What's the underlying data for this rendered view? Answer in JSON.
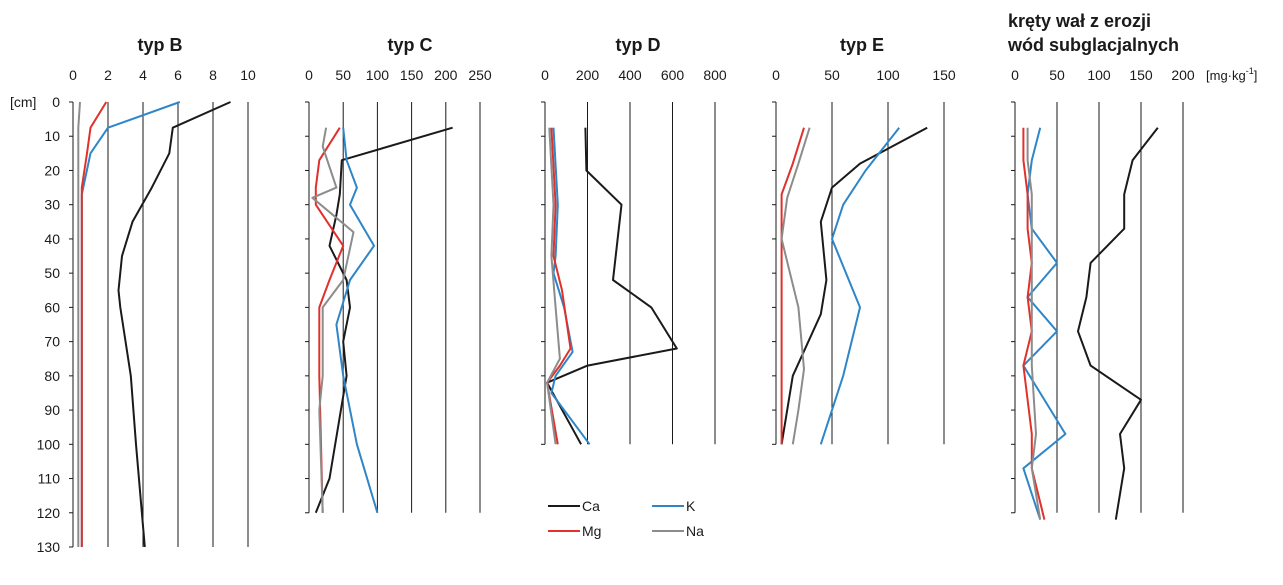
{
  "chart_data": {
    "type": "line",
    "y_unit_label": "[cm]",
    "x_unit_label": "[mg·kg",
    "x_unit_exponent": "-1",
    "x_unit_close": "]",
    "y_ticks": [
      "0",
      "10",
      "20",
      "30",
      "40",
      "50",
      "60",
      "70",
      "80",
      "90",
      "100",
      "110",
      "120",
      "130"
    ],
    "ylim": [
      0,
      130
    ],
    "colors": {
      "Ca": "#1a1a1a",
      "K": "#2e86c8",
      "Mg": "#e0312b",
      "Na": "#8c8c8c"
    },
    "legend": [
      {
        "key": "Ca",
        "label": "Ca"
      },
      {
        "key": "K",
        "label": "K"
      },
      {
        "key": "Mg",
        "label": "Mg"
      },
      {
        "key": "Na",
        "label": "Na"
      }
    ],
    "panels": [
      {
        "title": [
          "typ B"
        ],
        "xlim": [
          0,
          10
        ],
        "x_ticks": [
          "0",
          "2",
          "4",
          "6",
          "8",
          "10"
        ],
        "series": [
          {
            "name": "Ca",
            "points": [
              [
                9,
                0
              ],
              [
                5.7,
                7.5
              ],
              [
                5.5,
                15
              ],
              [
                4.5,
                25
              ],
              [
                3.4,
                35
              ],
              [
                2.8,
                45
              ],
              [
                2.6,
                55
              ],
              [
                2.7,
                60
              ],
              [
                3.3,
                80
              ],
              [
                3.6,
                100
              ],
              [
                4.1,
                130
              ]
            ]
          },
          {
            "name": "K",
            "points": [
              [
                6.1,
                0
              ],
              [
                2,
                7.5
              ],
              [
                1,
                15
              ],
              [
                0.5,
                27
              ],
              [
                0.5,
                40
              ],
              [
                0.5,
                130
              ]
            ]
          },
          {
            "name": "Mg",
            "points": [
              [
                1.9,
                0
              ],
              [
                1,
                7.5
              ],
              [
                0.8,
                15
              ],
              [
                0.5,
                25
              ],
              [
                0.5,
                130
              ]
            ]
          },
          {
            "name": "Na",
            "points": [
              [
                0.4,
                0
              ],
              [
                0.3,
                7.5
              ],
              [
                0.3,
                130
              ]
            ]
          }
        ]
      },
      {
        "title": [
          "typ C"
        ],
        "xlim": [
          0,
          250
        ],
        "x_ticks": [
          "0",
          "50",
          "100",
          "150",
          "200",
          "250"
        ],
        "series": [
          {
            "name": "Ca",
            "points": [
              [
                210,
                7.5
              ],
              [
                48,
                17
              ],
              [
                45,
                27
              ],
              [
                40,
                33
              ],
              [
                30,
                42
              ],
              [
                55,
                52
              ],
              [
                60,
                60
              ],
              [
                50,
                70
              ],
              [
                55,
                80
              ],
              [
                30,
                110
              ],
              [
                10,
                120
              ]
            ]
          },
          {
            "name": "K",
            "points": [
              [
                50,
                7.5
              ],
              [
                55,
                17
              ],
              [
                70,
                25
              ],
              [
                60,
                30
              ],
              [
                95,
                42
              ],
              [
                60,
                52
              ],
              [
                40,
                65
              ],
              [
                50,
                80
              ],
              [
                70,
                100
              ],
              [
                100,
                120
              ]
            ]
          },
          {
            "name": "Mg",
            "points": [
              [
                45,
                7.5
              ],
              [
                15,
                17
              ],
              [
                10,
                25
              ],
              [
                10,
                30
              ],
              [
                50,
                42
              ],
              [
                30,
                52
              ],
              [
                15,
                60
              ],
              [
                15,
                80
              ],
              [
                20,
                120
              ]
            ]
          },
          {
            "name": "Na",
            "points": [
              [
                25,
                7.5
              ],
              [
                20,
                13
              ],
              [
                40,
                25
              ],
              [
                5,
                28
              ],
              [
                65,
                38
              ],
              [
                50,
                52
              ],
              [
                20,
                60
              ],
              [
                20,
                80
              ],
              [
                15,
                90
              ],
              [
                20,
                120
              ]
            ]
          }
        ]
      },
      {
        "title": [
          "typ D"
        ],
        "xlim": [
          0,
          800
        ],
        "x_ticks": [
          "0",
          "200",
          "400",
          "600",
          "800"
        ],
        "series": [
          {
            "name": "Ca",
            "points": [
              [
                190,
                7.5
              ],
              [
                195,
                20
              ],
              [
                360,
                30
              ],
              [
                320,
                52
              ],
              [
                500,
                60
              ],
              [
                620,
                72
              ],
              [
                200,
                77
              ],
              [
                10,
                82
              ],
              [
                170,
                100
              ]
            ]
          },
          {
            "name": "K",
            "points": [
              [
                40,
                7.5
              ],
              [
                60,
                30
              ],
              [
                50,
                45
              ],
              [
                40,
                50
              ],
              [
                90,
                60
              ],
              [
                130,
                73
              ],
              [
                50,
                80
              ],
              [
                30,
                85
              ],
              [
                210,
                100
              ]
            ]
          },
          {
            "name": "Mg",
            "points": [
              [
                30,
                7.5
              ],
              [
                50,
                30
              ],
              [
                40,
                45
              ],
              [
                80,
                55
              ],
              [
                120,
                72
              ],
              [
                70,
                77
              ],
              [
                10,
                82
              ],
              [
                60,
                100
              ]
            ]
          },
          {
            "name": "Na",
            "points": [
              [
                20,
                7.5
              ],
              [
                40,
                30
              ],
              [
                30,
                45
              ],
              [
                50,
                60
              ],
              [
                70,
                75
              ],
              [
                10,
                82
              ],
              [
                50,
                100
              ]
            ]
          }
        ]
      },
      {
        "title": [
          "typ E"
        ],
        "xlim": [
          0,
          150
        ],
        "x_ticks": [
          "0",
          "50",
          "100",
          "150"
        ],
        "series": [
          {
            "name": "Ca",
            "points": [
              [
                135,
                7.5
              ],
              [
                75,
                18
              ],
              [
                50,
                25
              ],
              [
                40,
                35
              ],
              [
                45,
                52
              ],
              [
                40,
                62
              ],
              [
                15,
                80
              ],
              [
                5,
                100
              ]
            ]
          },
          {
            "name": "K",
            "points": [
              [
                110,
                7.5
              ],
              [
                80,
                20
              ],
              [
                60,
                30
              ],
              [
                50,
                40
              ],
              [
                75,
                60
              ],
              [
                60,
                80
              ],
              [
                50,
                90
              ],
              [
                40,
                100
              ]
            ]
          },
          {
            "name": "Mg",
            "points": [
              [
                25,
                7.5
              ],
              [
                15,
                18
              ],
              [
                5,
                27
              ],
              [
                5,
                35
              ],
              [
                5,
                62
              ],
              [
                5,
                100
              ]
            ]
          },
          {
            "name": "Na",
            "points": [
              [
                30,
                7.5
              ],
              [
                20,
                18
              ],
              [
                10,
                28
              ],
              [
                5,
                40
              ],
              [
                20,
                60
              ],
              [
                25,
                78
              ],
              [
                20,
                90
              ],
              [
                15,
                100
              ]
            ]
          }
        ]
      },
      {
        "title": [
          "kręty wał z erozji",
          "wód subglacjalnych"
        ],
        "xlim": [
          0,
          200
        ],
        "x_ticks": [
          "0",
          "50",
          "100",
          "150",
          "200"
        ],
        "series": [
          {
            "name": "Ca",
            "points": [
              [
                170,
                7.5
              ],
              [
                140,
                17
              ],
              [
                130,
                27
              ],
              [
                130,
                37
              ],
              [
                90,
                47
              ],
              [
                85,
                57
              ],
              [
                75,
                67
              ],
              [
                90,
                77
              ],
              [
                150,
                87
              ],
              [
                125,
                97
              ],
              [
                130,
                107
              ],
              [
                120,
                122
              ]
            ]
          },
          {
            "name": "K",
            "points": [
              [
                30,
                7.5
              ],
              [
                20,
                17
              ],
              [
                15,
                27
              ],
              [
                20,
                37
              ],
              [
                50,
                47
              ],
              [
                15,
                57
              ],
              [
                50,
                67
              ],
              [
                10,
                77
              ],
              [
                60,
                97
              ],
              [
                10,
                107
              ],
              [
                30,
                122
              ]
            ]
          },
          {
            "name": "Mg",
            "points": [
              [
                10,
                7.5
              ],
              [
                10,
                17
              ],
              [
                15,
                27
              ],
              [
                15,
                37
              ],
              [
                20,
                47
              ],
              [
                15,
                57
              ],
              [
                20,
                67
              ],
              [
                10,
                77
              ],
              [
                20,
                97
              ],
              [
                20,
                107
              ],
              [
                35,
                122
              ]
            ]
          },
          {
            "name": "Na",
            "points": [
              [
                15,
                7.5
              ],
              [
                15,
                17
              ],
              [
                20,
                27
              ],
              [
                20,
                37
              ],
              [
                20,
                47
              ],
              [
                20,
                57
              ],
              [
                20,
                67
              ],
              [
                20,
                77
              ],
              [
                25,
                97
              ],
              [
                20,
                107
              ],
              [
                30,
                122
              ]
            ]
          }
        ]
      }
    ]
  }
}
